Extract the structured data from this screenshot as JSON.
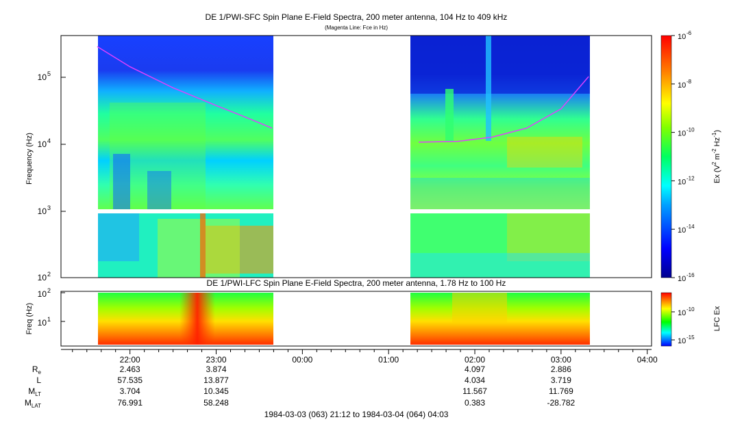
{
  "chart_data": [
    {
      "type": "heatmap",
      "title": "DE 1/PWI-SFC  Spin Plane E-Field Spectra, 200 meter antenna, 104 Hz to 409 kHz",
      "subtitle": "(Magenta Line: Fce in Hz)",
      "ylabel": "Frequency (Hz)",
      "yscale": "log",
      "ylim": [
        100,
        409000
      ],
      "y_ticks": [
        {
          "exp": "2",
          "label": "10",
          "value": 100
        },
        {
          "exp": "3",
          "label": "10",
          "value": 1000
        },
        {
          "exp": "4",
          "label": "10",
          "value": 10000
        },
        {
          "exp": "5",
          "label": "10",
          "value": 100000
        }
      ],
      "xlim_hours": [
        21.2,
        28.05
      ],
      "data_intervals_hours": [
        [
          21.6,
          23.68
        ],
        [
          25.3,
          27.33
        ]
      ],
      "colorbar": {
        "label_main": "Ex (V",
        "label_sup1": "2",
        "label_mid": " m",
        "label_sup2": "-2",
        "label_mid2": " Hz",
        "label_sup3": "-1",
        "label_end": ")",
        "scale": "log",
        "range": [
          1e-16,
          1e-06
        ],
        "ticks": [
          {
            "label": "10",
            "exp": "-6",
            "value": -6
          },
          {
            "label": "10",
            "exp": "-8",
            "value": -8
          },
          {
            "label": "10",
            "exp": "-10",
            "value": -10
          },
          {
            "label": "10",
            "exp": "-12",
            "value": -12
          },
          {
            "label": "10",
            "exp": "-14",
            "value": -14
          },
          {
            "label": "10",
            "exp": "-16",
            "value": -16
          }
        ]
      },
      "fce_line": {
        "color": "#e040ff",
        "segments": [
          [
            [
              21.62,
              280000
            ],
            [
              22.0,
              140000
            ],
            [
              22.5,
              68000
            ],
            [
              23.0,
              37000
            ],
            [
              23.3,
              26000
            ],
            [
              23.65,
              17000
            ]
          ],
          [
            [
              25.35,
              10500
            ],
            [
              25.8,
              10800
            ],
            [
              26.2,
              12500
            ],
            [
              26.6,
              17000
            ],
            [
              27.0,
              33000
            ],
            [
              27.32,
              100000
            ]
          ]
        ]
      }
    },
    {
      "type": "heatmap",
      "title": "DE 1/PWI-LFC  Spin Plane E-Field Spectra, 200 meter antenna, 1.78 Hz to 100 Hz",
      "ylabel": "Freq (Hz)",
      "yscale": "log",
      "ylim": [
        1.78,
        100
      ],
      "y_ticks": [
        {
          "exp": "1",
          "label": "10",
          "value": 10
        },
        {
          "exp": "2",
          "label": "10",
          "value": 100
        }
      ],
      "colorbar": {
        "label": "LFC Ex",
        "scale": "log",
        "ticks": [
          {
            "label": "10",
            "exp": "-10",
            "value": -10
          },
          {
            "label": "10",
            "exp": "-15",
            "value": -15
          }
        ]
      }
    }
  ],
  "time_axis": {
    "ticks": [
      {
        "label": "22:00",
        "hour": 22
      },
      {
        "label": "23:00",
        "hour": 23
      },
      {
        "label": "00:00",
        "hour": 24
      },
      {
        "label": "01:00",
        "hour": 25
      },
      {
        "label": "02:00",
        "hour": 26
      },
      {
        "label": "03:00",
        "hour": 27
      },
      {
        "label": "04:00",
        "hour": 28
      }
    ],
    "range_label": "1984-03-03 (063) 21:12 to 1984-03-04 (064) 04:03"
  },
  "ephemeris": {
    "rows": [
      {
        "name": "R",
        "sub": "e",
        "values": [
          "2.463",
          "3.874",
          "",
          "",
          "4.097",
          "2.886",
          ""
        ]
      },
      {
        "name": "L",
        "sub": "",
        "values": [
          "57.535",
          "13.877",
          "",
          "",
          "4.034",
          "3.719",
          ""
        ]
      },
      {
        "name": "M",
        "sub": "LT",
        "values": [
          "3.704",
          "10.345",
          "",
          "",
          "11.567",
          "11.769",
          ""
        ]
      },
      {
        "name": "M",
        "sub": "LAT",
        "values": [
          "76.991",
          "58.248",
          "",
          "",
          "0.383",
          "-28.782",
          ""
        ]
      }
    ]
  }
}
